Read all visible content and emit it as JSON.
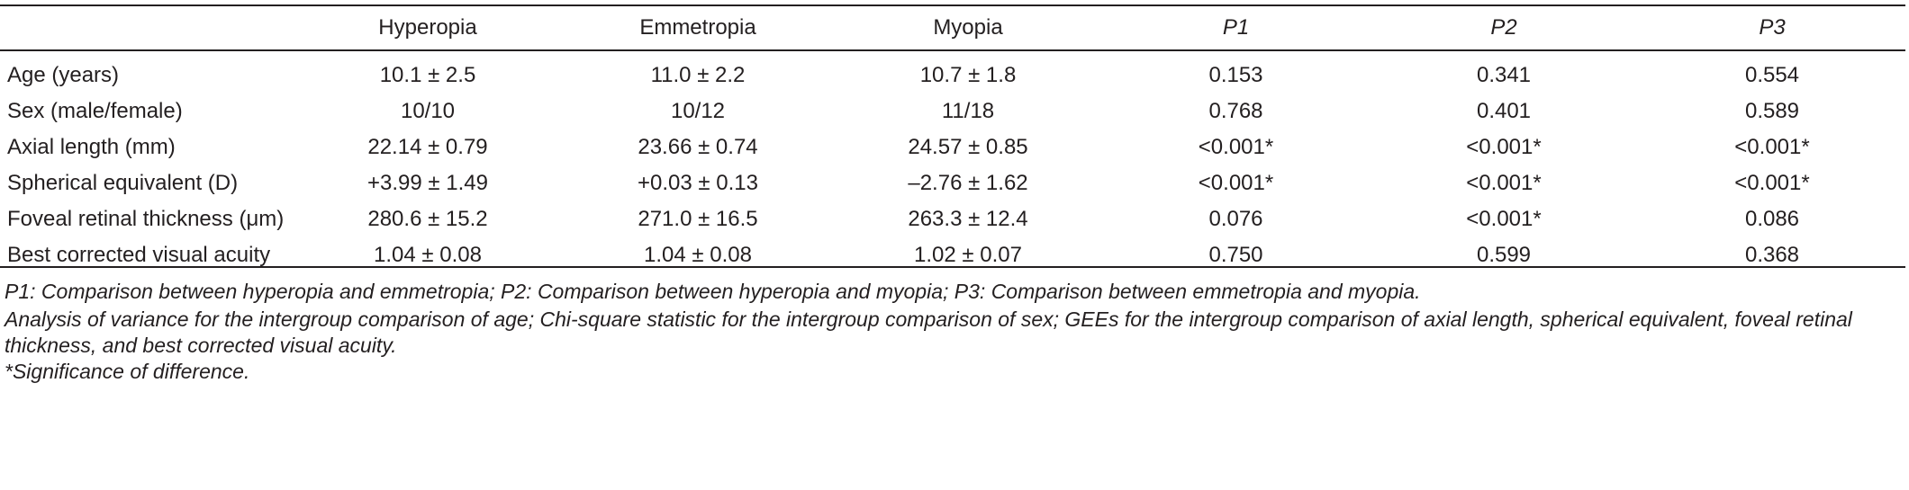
{
  "table": {
    "headers": [
      "",
      "Hyperopia",
      "Emmetropia",
      "Myopia",
      "P1",
      "P2",
      "P3"
    ],
    "rows": [
      [
        "Age (years)",
        "10.1 ± 2.5",
        "11.0 ± 2.2",
        "10.7 ± 1.8",
        "0.153",
        "0.341",
        "0.554"
      ],
      [
        "Sex (male/female)",
        "10/10",
        "10/12",
        "11/18",
        "0.768",
        "0.401",
        "0.589"
      ],
      [
        "Axial length (mm)",
        "22.14 ± 0.79",
        "23.66 ± 0.74",
        "24.57 ± 0.85",
        "<0.001*",
        "<0.001*",
        "<0.001*"
      ],
      [
        "Spherical equivalent (D)",
        "+3.99 ± 1.49",
        "+0.03 ± 0.13",
        "–2.76 ± 1.62",
        "<0.001*",
        "<0.001*",
        "<0.001*"
      ],
      [
        "Foveal retinal thickness (μm)",
        "280.6 ± 15.2",
        "271.0 ± 16.5",
        "263.3 ± 12.4",
        "0.076",
        "<0.001*",
        "0.086"
      ],
      [
        "Best corrected visual acuity",
        "1.04 ± 0.08",
        "1.04 ± 0.08",
        "1.02 ± 0.07",
        "0.750",
        "0.599",
        "0.368"
      ]
    ]
  },
  "footnotes": [
    "P1: Comparison between hyperopia and emmetropia; P2: Comparison between hyperopia and myopia; P3: Comparison between emmetropia and myopia.",
    "Analysis of variance for the intergroup comparison of age; Chi-square statistic for the intergroup comparison of sex; GEEs for the intergroup comparison of axial length, spherical equivalent, foveal retinal thickness, and best corrected visual acuity.",
    "*Significance of difference."
  ]
}
